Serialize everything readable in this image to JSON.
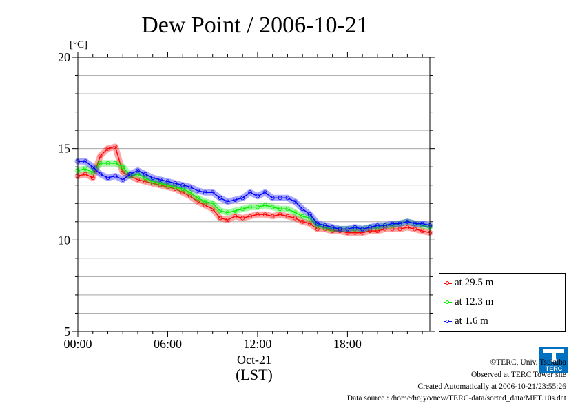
{
  "chart_data": {
    "type": "line",
    "title": "Dew Point / 2006-10-21",
    "ylabel": "[°C]",
    "xlabel": "(LST)",
    "x_date_label": "Oct-21",
    "x_ticks": [
      "00:00",
      "06:00",
      "12:00",
      "18:00"
    ],
    "x_range_hours": [
      0,
      23.5
    ],
    "y_ticks": [
      5,
      10,
      15,
      20
    ],
    "ylim": [
      5,
      20
    ],
    "grid": true,
    "legend_position": "right-bottom",
    "x_hours": [
      0,
      0.5,
      1,
      1.5,
      2,
      2.5,
      3,
      3.5,
      4,
      4.5,
      5,
      5.5,
      6,
      6.5,
      7,
      7.5,
      8,
      8.5,
      9,
      9.5,
      10,
      10.5,
      11,
      11.5,
      12,
      12.5,
      13,
      13.5,
      14,
      14.5,
      15,
      15.5,
      16,
      16.5,
      17,
      17.5,
      18,
      18.5,
      19,
      19.5,
      20,
      20.5,
      21,
      21.5,
      22,
      22.5,
      23,
      23.5
    ],
    "series": [
      {
        "name": "at 29.5 m",
        "color": "#ff0000",
        "values": [
          13.5,
          13.6,
          13.4,
          14.6,
          15.0,
          15.1,
          13.7,
          13.5,
          13.3,
          13.2,
          13.1,
          13.0,
          12.9,
          12.8,
          12.6,
          12.4,
          12.1,
          11.9,
          11.7,
          11.2,
          11.1,
          11.3,
          11.2,
          11.3,
          11.4,
          11.4,
          11.3,
          11.4,
          11.3,
          11.2,
          11.0,
          10.9,
          10.6,
          10.6,
          10.5,
          10.5,
          10.4,
          10.4,
          10.4,
          10.5,
          10.5,
          10.6,
          10.6,
          10.6,
          10.7,
          10.6,
          10.5,
          10.4
        ]
      },
      {
        "name": "at 12.3 m",
        "color": "#00ee00",
        "values": [
          13.8,
          13.9,
          13.7,
          14.2,
          14.2,
          14.2,
          14.0,
          13.5,
          13.6,
          13.4,
          13.2,
          13.1,
          13.0,
          12.9,
          12.8,
          12.6,
          12.3,
          12.1,
          12.0,
          11.6,
          11.5,
          11.6,
          11.7,
          11.8,
          11.8,
          11.9,
          11.8,
          11.7,
          11.7,
          11.5,
          11.3,
          11.2,
          10.8,
          10.7,
          10.6,
          10.6,
          10.6,
          10.6,
          10.6,
          10.7,
          10.7,
          10.8,
          10.8,
          10.9,
          11.0,
          10.9,
          10.8,
          10.7
        ]
      },
      {
        "name": "at 1.6 m",
        "color": "#0000ff",
        "values": [
          14.3,
          14.3,
          14.0,
          13.6,
          13.4,
          13.5,
          13.3,
          13.6,
          13.8,
          13.6,
          13.4,
          13.3,
          13.2,
          13.1,
          13.0,
          12.9,
          12.7,
          12.6,
          12.6,
          12.3,
          12.1,
          12.2,
          12.3,
          12.6,
          12.4,
          12.6,
          12.3,
          12.3,
          12.3,
          12.1,
          11.7,
          11.4,
          10.9,
          10.8,
          10.7,
          10.6,
          10.6,
          10.7,
          10.6,
          10.7,
          10.8,
          10.8,
          10.9,
          10.9,
          11.0,
          10.9,
          10.9,
          10.8
        ]
      }
    ]
  },
  "legend": {
    "items": [
      "at 29.5 m",
      "at 12.3 m",
      "at 1.6 m"
    ],
    "colors": [
      "#ff0000",
      "#00ee00",
      "#0000ff"
    ]
  },
  "footer": {
    "copyright": "©TERC, Univ. Tsukuba",
    "observed": "Observed at TERC Tower site",
    "created": "Created Automatically at 2006-10-21/23:55:26",
    "source": "Data source : /home/hojyo/new/TERC-data/sorted_data/MET.10s.dat"
  },
  "logo": {
    "icon": "terc-logo-icon",
    "text": "TERC",
    "color": "#0070c0"
  }
}
